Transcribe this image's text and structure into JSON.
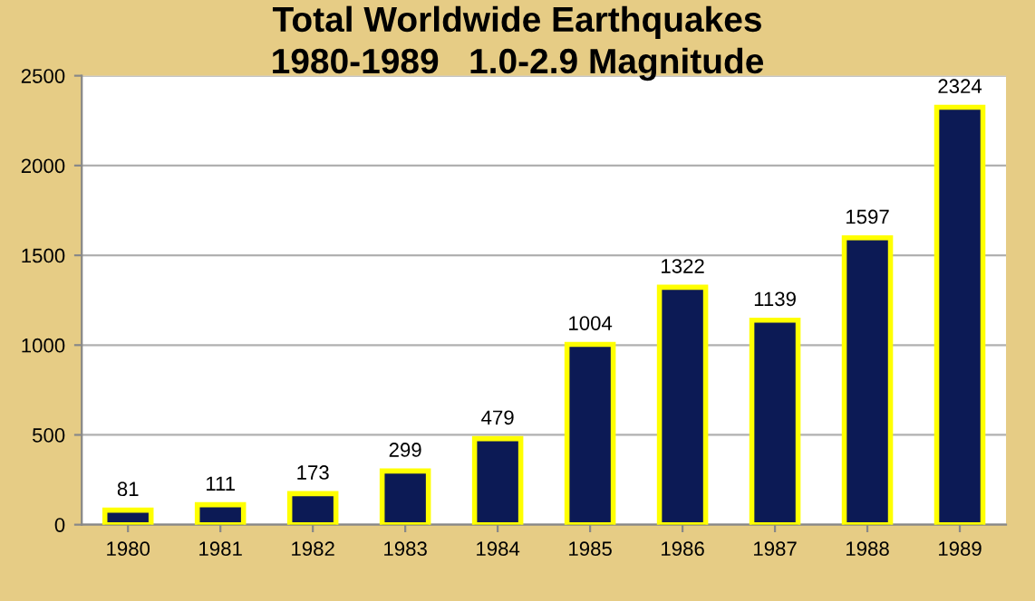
{
  "chart_data": {
    "type": "bar",
    "title": "Total Worldwide Earthquakes\n1980-1989   1.0-2.9 Magnitude",
    "categories": [
      "1980",
      "1981",
      "1982",
      "1983",
      "1984",
      "1985",
      "1986",
      "1987",
      "1988",
      "1989"
    ],
    "values": [
      81,
      111,
      173,
      299,
      479,
      1004,
      1322,
      1139,
      1597,
      2324
    ],
    "color": "#0c1a55",
    "ylim": [
      0,
      2500
    ],
    "yticks": [
      0,
      500,
      1000,
      1500,
      2000,
      2500
    ],
    "grid": "y",
    "data_labels": true
  }
}
